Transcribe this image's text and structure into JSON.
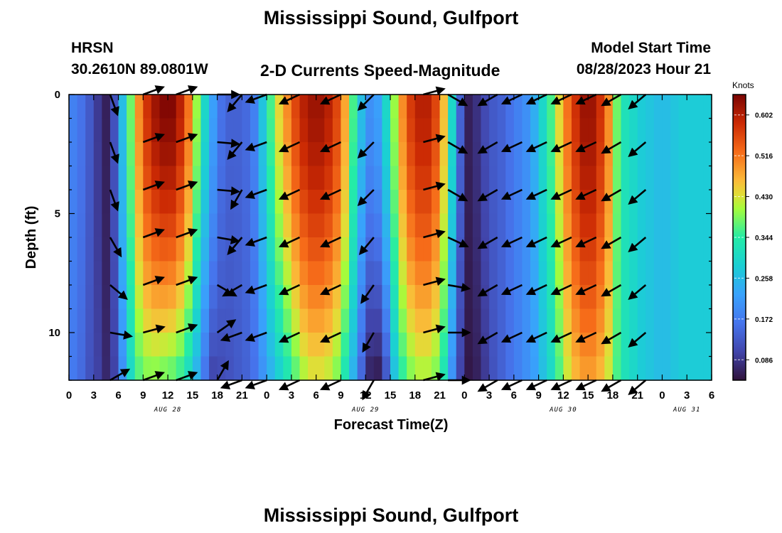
{
  "page": {
    "title": "Mississippi Sound, Gulfport",
    "bottom_title": "Mississippi Sound, Gulfport",
    "station_code": "HRSN",
    "station_location": "30.2610N  89.0801W",
    "product": "2-D Currents Speed-Magnitude",
    "model_start_label": "Model Start Time",
    "model_start_value": "08/28/2023 Hour 21"
  },
  "chart_data": {
    "type": "heatmap",
    "title": "2-D Currents Speed-Magnitude",
    "xlabel": "Forecast Time(Z)",
    "ylabel": "Depth (ft)",
    "x_range_hours": [
      0,
      78
    ],
    "y_range_ft": [
      0,
      12
    ],
    "y_inverted": true,
    "x_tick_labels": [
      "0",
      "3",
      "6",
      "9",
      "12",
      "15",
      "18",
      "21",
      "0",
      "3",
      "6",
      "9",
      "12",
      "15",
      "18",
      "21",
      "0",
      "3",
      "6",
      "9",
      "12",
      "15",
      "18",
      "21",
      "0",
      "3",
      "6"
    ],
    "y_tick_labels": [
      "0",
      "5",
      "10"
    ],
    "date_labels": [
      {
        "text": "AUG 28",
        "hour": 12
      },
      {
        "text": "AUG 29",
        "hour": 36
      },
      {
        "text": "AUG 30",
        "hour": 60
      },
      {
        "text": "AUG 31",
        "hour": 75
      }
    ],
    "colorbar": {
      "label": "Knots",
      "min": 0.043,
      "max": 0.645,
      "ticks": [
        "0.086",
        "0.172",
        "0.258",
        "0.344",
        "0.430",
        "0.516",
        "0.602"
      ]
    },
    "surface_speed_knots": {
      "hour": [
        0,
        1,
        2,
        3,
        4,
        5,
        6,
        7,
        8,
        9,
        10,
        11,
        12,
        13,
        14,
        15,
        16,
        17,
        18,
        19,
        20,
        21,
        22,
        23,
        24,
        25,
        26,
        27,
        28,
        29,
        30,
        31,
        32,
        33,
        34,
        35,
        36,
        37,
        38,
        39,
        40,
        41,
        42,
        43,
        44,
        45,
        46,
        47,
        48,
        49,
        50,
        51,
        52,
        53,
        54,
        55,
        56,
        57,
        58,
        59,
        60,
        61,
        62,
        63,
        64,
        65,
        66,
        67,
        68,
        69,
        70,
        71,
        72,
        73,
        74,
        75,
        76,
        77,
        78
      ],
      "speed": [
        0.18,
        0.16,
        0.13,
        0.09,
        0.06,
        0.12,
        0.26,
        0.38,
        0.5,
        0.58,
        0.62,
        0.64,
        0.64,
        0.6,
        0.52,
        0.4,
        0.3,
        0.22,
        0.16,
        0.14,
        0.14,
        0.15,
        0.18,
        0.27,
        0.36,
        0.44,
        0.5,
        0.56,
        0.6,
        0.62,
        0.62,
        0.6,
        0.56,
        0.48,
        0.36,
        0.26,
        0.2,
        0.22,
        0.3,
        0.4,
        0.5,
        0.57,
        0.6,
        0.6,
        0.56,
        0.46,
        0.3,
        0.14,
        0.06,
        0.08,
        0.11,
        0.13,
        0.14,
        0.16,
        0.18,
        0.2,
        0.24,
        0.3,
        0.36,
        0.44,
        0.52,
        0.58,
        0.62,
        0.62,
        0.58,
        0.5,
        0.38,
        0.32,
        0.3,
        0.28,
        0.27,
        0.26,
        0.26,
        0.27,
        0.28,
        0.28,
        0.28,
        0.28,
        0.28
      ]
    },
    "bottom_speed_knots": {
      "hour": [
        0,
        1,
        2,
        3,
        4,
        5,
        6,
        7,
        8,
        9,
        10,
        11,
        12,
        13,
        14,
        15,
        16,
        17,
        18,
        19,
        20,
        21,
        22,
        23,
        24,
        25,
        26,
        27,
        28,
        29,
        30,
        31,
        32,
        33,
        34,
        35,
        36,
        37,
        38,
        39,
        40,
        41,
        42,
        43,
        44,
        45,
        46,
        47,
        48,
        49,
        50,
        51,
        52,
        53,
        54,
        55,
        56,
        57,
        58,
        59,
        60,
        61,
        62,
        63,
        64,
        65,
        66,
        67,
        68,
        69,
        70,
        71,
        72,
        73,
        74,
        75,
        76,
        77,
        78
      ],
      "speed": [
        0.17,
        0.15,
        0.12,
        0.1,
        0.07,
        0.1,
        0.2,
        0.3,
        0.36,
        0.38,
        0.38,
        0.37,
        0.36,
        0.34,
        0.3,
        0.24,
        0.16,
        0.1,
        0.11,
        0.12,
        0.13,
        0.14,
        0.16,
        0.2,
        0.24,
        0.28,
        0.32,
        0.36,
        0.4,
        0.42,
        0.42,
        0.41,
        0.38,
        0.32,
        0.24,
        0.14,
        0.06,
        0.05,
        0.12,
        0.26,
        0.34,
        0.38,
        0.4,
        0.4,
        0.38,
        0.32,
        0.2,
        0.1,
        0.05,
        0.06,
        0.09,
        0.12,
        0.14,
        0.16,
        0.18,
        0.2,
        0.22,
        0.26,
        0.3,
        0.36,
        0.42,
        0.46,
        0.48,
        0.48,
        0.46,
        0.42,
        0.36,
        0.32,
        0.3,
        0.28,
        0.27,
        0.26,
        0.26,
        0.27,
        0.28,
        0.28,
        0.28,
        0.28,
        0.28
      ]
    },
    "vector_hours": [
      5,
      9,
      13,
      18,
      21,
      24,
      28,
      33,
      37,
      43,
      46,
      52,
      55,
      58,
      61,
      64,
      67,
      70
    ],
    "vector_depths_ft": [
      0,
      2,
      4,
      6,
      8,
      10,
      12
    ],
    "vector_direction_deg": [
      [
        160,
        160,
        160,
        150,
        130,
        100,
        60
      ],
      [
        70,
        70,
        70,
        70,
        70,
        75,
        70
      ],
      [
        70,
        70,
        70,
        70,
        70,
        70,
        70
      ],
      [
        90,
        95,
        95,
        100,
        120,
        55,
        30
      ],
      [
        220,
        220,
        210,
        220,
        240,
        250,
        250
      ],
      [
        250,
        250,
        250,
        250,
        250,
        250,
        250
      ],
      [
        245,
        245,
        245,
        245,
        245,
        245,
        245
      ],
      [
        245,
        245,
        245,
        245,
        245,
        245,
        245
      ],
      [
        225,
        225,
        225,
        220,
        215,
        210,
        210
      ],
      [
        75,
        75,
        75,
        75,
        75,
        75,
        75
      ],
      [
        120,
        120,
        120,
        115,
        100,
        90,
        90
      ],
      [
        240,
        240,
        240,
        240,
        240,
        240,
        240
      ],
      [
        245,
        245,
        245,
        245,
        245,
        245,
        245
      ],
      [
        245,
        245,
        245,
        245,
        245,
        245,
        245
      ],
      [
        245,
        245,
        245,
        245,
        245,
        245,
        245
      ],
      [
        245,
        245,
        245,
        245,
        245,
        245,
        245
      ],
      [
        240,
        240,
        240,
        240,
        240,
        240,
        240
      ],
      [
        230,
        230,
        230,
        230,
        230,
        230,
        230
      ]
    ]
  }
}
